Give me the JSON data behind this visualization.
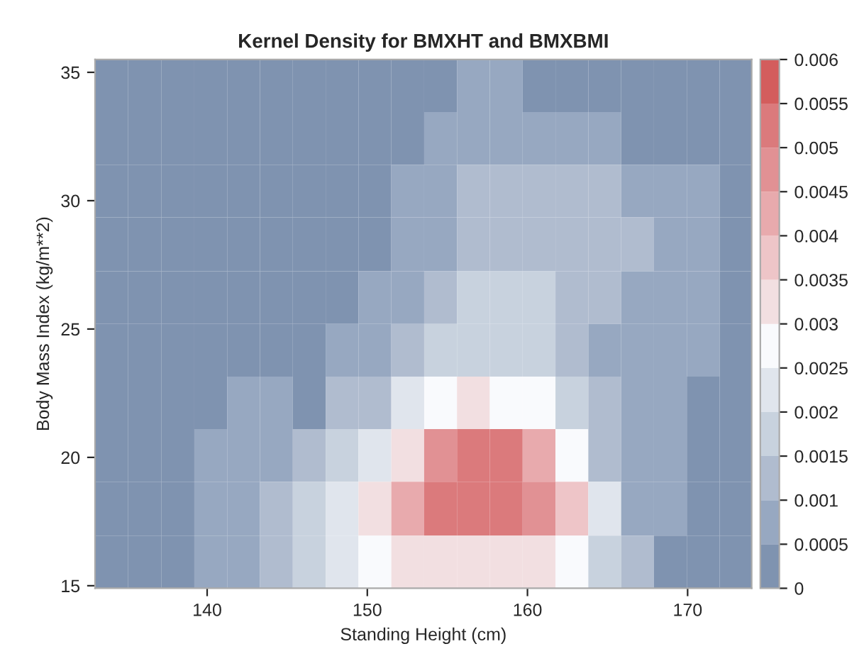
{
  "chart_data": {
    "type": "heatmap",
    "title": "Kernel Density for BMXHT and BMXBMI",
    "xlabel": "Standing Height (cm)",
    "ylabel": "Body Mass Index (kg/m**2)",
    "x": [
      134.0,
      136.1,
      138.2,
      140.2,
      142.3,
      144.3,
      146.4,
      148.4,
      150.5,
      152.5,
      154.6,
      156.6,
      158.7,
      160.7,
      162.8,
      164.8,
      166.9,
      168.9,
      171.0,
      173.0
    ],
    "y": [
      34.5,
      32.4,
      30.4,
      28.3,
      26.2,
      24.2,
      22.1,
      20.1,
      18.0,
      15.9
    ],
    "xlim": [
      133,
      174
    ],
    "xticks": [
      140,
      150,
      160,
      170
    ],
    "ylim": [
      14.9,
      35.5
    ],
    "yticks": [
      15,
      20,
      25,
      30,
      35
    ],
    "clim": [
      0,
      0.006
    ],
    "cticks": [
      0,
      0.0005,
      0.001,
      0.0015,
      0.002,
      0.0025,
      0.003,
      0.0035,
      0.004,
      0.0045,
      0.005,
      0.0055,
      0.006
    ],
    "colors": [
      "#7f93b0",
      "#97a8c1",
      "#b0bccf",
      "#c8d2de",
      "#e0e5ed",
      "#f9fafd",
      "#f2dfe1",
      "#eec5c8",
      "#e8aaad",
      "#e19194",
      "#db7a7c",
      "#d35d5d"
    ],
    "cells": [
      [
        0.00025,
        0.00025,
        0.00025,
        0.00025,
        0.00025,
        0.00025,
        0.00025,
        0.00025,
        0.00025,
        0.00025,
        0.00025,
        0.00075,
        0.00075,
        0.00025,
        0.00025,
        0.00025,
        0.00025,
        0.00025,
        0.00025,
        0.00025
      ],
      [
        0.00025,
        0.00025,
        0.00025,
        0.00025,
        0.00025,
        0.00025,
        0.00025,
        0.00025,
        0.00025,
        0.00025,
        0.00075,
        0.00075,
        0.00075,
        0.00075,
        0.00075,
        0.00075,
        0.00025,
        0.00025,
        0.00025,
        0.00025
      ],
      [
        0.00025,
        0.00025,
        0.00025,
        0.00025,
        0.00025,
        0.00025,
        0.00025,
        0.00025,
        0.00025,
        0.00075,
        0.00075,
        0.00125,
        0.00125,
        0.00125,
        0.00125,
        0.00125,
        0.00075,
        0.00075,
        0.00075,
        0.00025
      ],
      [
        0.00025,
        0.00025,
        0.00025,
        0.00025,
        0.00025,
        0.00025,
        0.00025,
        0.00025,
        0.00025,
        0.00075,
        0.00075,
        0.00125,
        0.00125,
        0.00125,
        0.00125,
        0.00125,
        0.00125,
        0.00075,
        0.00075,
        0.00025
      ],
      [
        0.00025,
        0.00025,
        0.00025,
        0.00025,
        0.00025,
        0.00025,
        0.00025,
        0.00025,
        0.00075,
        0.00075,
        0.00125,
        0.00175,
        0.00175,
        0.00175,
        0.00125,
        0.00125,
        0.00075,
        0.00075,
        0.00075,
        0.00025
      ],
      [
        0.00025,
        0.00025,
        0.00025,
        0.00025,
        0.00025,
        0.00025,
        0.00025,
        0.00075,
        0.00075,
        0.00125,
        0.00175,
        0.00175,
        0.00175,
        0.00175,
        0.00125,
        0.00075,
        0.00075,
        0.00075,
        0.00075,
        0.00025
      ],
      [
        0.00025,
        0.00025,
        0.00025,
        0.00025,
        0.00075,
        0.00075,
        0.00025,
        0.00125,
        0.00125,
        0.00225,
        0.00275,
        0.00325,
        0.00275,
        0.00275,
        0.00175,
        0.00125,
        0.00075,
        0.00075,
        0.00025,
        0.00025
      ],
      [
        0.00025,
        0.00025,
        0.00025,
        0.00075,
        0.00075,
        0.00075,
        0.00125,
        0.00175,
        0.00225,
        0.00325,
        0.00475,
        0.00525,
        0.00525,
        0.00425,
        0.00275,
        0.00125,
        0.00075,
        0.00075,
        0.00025,
        0.00025
      ],
      [
        0.00025,
        0.00025,
        0.00025,
        0.00075,
        0.00075,
        0.00125,
        0.00175,
        0.00225,
        0.00325,
        0.00425,
        0.00525,
        0.00525,
        0.00525,
        0.00475,
        0.00375,
        0.00225,
        0.00075,
        0.00075,
        0.00025,
        0.00025
      ],
      [
        0.00025,
        0.00025,
        0.00025,
        0.00075,
        0.00075,
        0.00125,
        0.00175,
        0.00225,
        0.00275,
        0.00325,
        0.00325,
        0.00325,
        0.00325,
        0.00325,
        0.00275,
        0.00175,
        0.00125,
        0.00025,
        0.00025,
        0.00025
      ]
    ]
  }
}
